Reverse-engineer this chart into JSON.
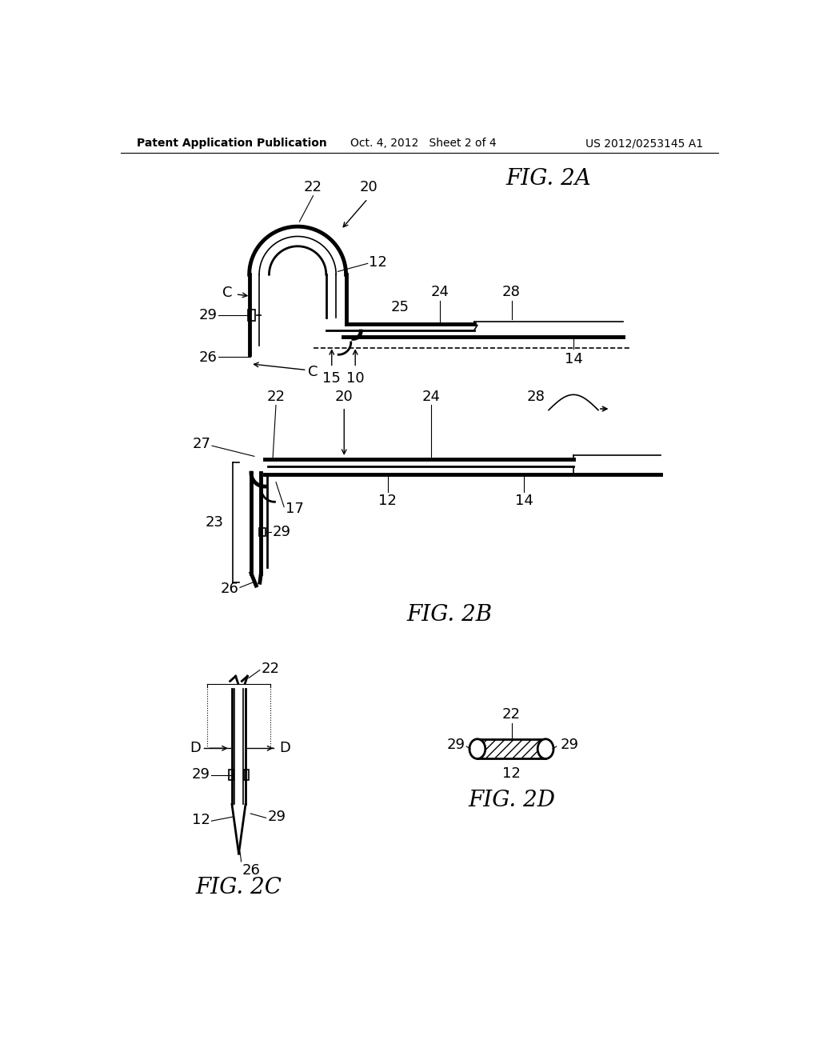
{
  "bg_color": "#ffffff",
  "line_color": "#000000",
  "header_left": "Patent Application Publication",
  "header_mid": "Oct. 4, 2012   Sheet 2 of 4",
  "header_right": "US 2012/0253145 A1",
  "fig2a_label": "FIG. 2A",
  "fig2b_label": "FIG. 2B",
  "fig2c_label": "FIG. 2C",
  "fig2d_label": "FIG. 2D"
}
